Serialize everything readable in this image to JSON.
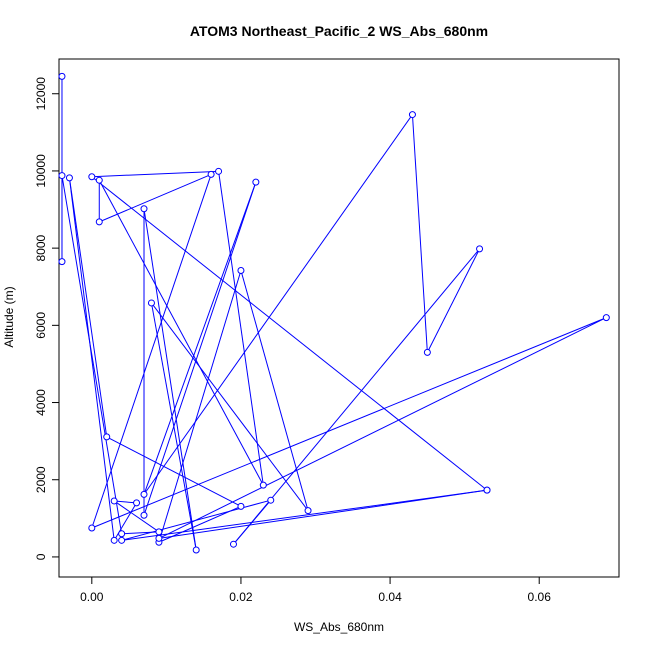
{
  "chart_data": {
    "type": "line",
    "title": "ATOM3 Northeast_Pacific_2 WS_Abs_680nm",
    "xlabel": "WS_Abs_680nm",
    "ylabel": "Altitude (m)",
    "xlim": [
      -0.0044,
      0.0707
    ],
    "ylim": [
      -520,
      12900
    ],
    "x_ticks": [
      {
        "value": 0.0,
        "label": "0.00"
      },
      {
        "value": 0.02,
        "label": "0.02"
      },
      {
        "value": 0.04,
        "label": "0.04"
      },
      {
        "value": 0.06,
        "label": "0.06"
      }
    ],
    "y_ticks": [
      {
        "value": 0,
        "label": "0"
      },
      {
        "value": 2000,
        "label": "2000"
      },
      {
        "value": 4000,
        "label": "4000"
      },
      {
        "value": 6000,
        "label": "6000"
      },
      {
        "value": 8000,
        "label": "8000"
      },
      {
        "value": 10000,
        "label": "10000"
      },
      {
        "value": 12000,
        "label": "12000"
      }
    ],
    "grid": false,
    "series": [
      {
        "color": "#0000ff",
        "marker": "open-circle",
        "points": [
          {
            "x": -0.004,
            "y": 12450
          },
          {
            "x": -0.004,
            "y": 7650
          },
          {
            "x": -0.004,
            "y": 9880
          },
          {
            "x": 0.004,
            "y": 600
          },
          {
            "x": 0.009,
            "y": 650
          },
          {
            "x": 0.003,
            "y": 1450
          },
          {
            "x": 0.006,
            "y": 1400
          },
          {
            "x": 0.003,
            "y": 430
          },
          {
            "x": -0.003,
            "y": 9820
          },
          {
            "x": 0.002,
            "y": 3110
          },
          {
            "x": 0.02,
            "y": 1310
          },
          {
            "x": 0.009,
            "y": 380
          },
          {
            "x": 0.02,
            "y": 7420
          },
          {
            "x": 0.029,
            "y": 1200
          },
          {
            "x": 0.008,
            "y": 6580
          },
          {
            "x": 0.014,
            "y": 180
          },
          {
            "x": 0.007,
            "y": 9020
          },
          {
            "x": 0.007,
            "y": 1080
          },
          {
            "x": 0.022,
            "y": 9710
          },
          {
            "x": 0.007,
            "y": 1620
          },
          {
            "x": 0.043,
            "y": 11460
          },
          {
            "x": 0.045,
            "y": 5300
          },
          {
            "x": 0.052,
            "y": 7980
          },
          {
            "x": 0.019,
            "y": 330
          },
          {
            "x": 0.024,
            "y": 1470
          },
          {
            "x": 0.004,
            "y": 430
          },
          {
            "x": 0.053,
            "y": 1730
          },
          {
            "x": 0.009,
            "y": 480
          },
          {
            "x": 0.069,
            "y": 6200
          },
          {
            "x": 0.0,
            "y": 750
          },
          {
            "x": 0.016,
            "y": 9910
          },
          {
            "x": 0.001,
            "y": 8680
          },
          {
            "x": 0.001,
            "y": 9760
          },
          {
            "x": 0.023,
            "y": 1860
          },
          {
            "x": 0.017,
            "y": 9990
          },
          {
            "x": 0.0,
            "y": 9850
          },
          {
            "x": 0.053,
            "y": 1730
          }
        ]
      }
    ]
  }
}
